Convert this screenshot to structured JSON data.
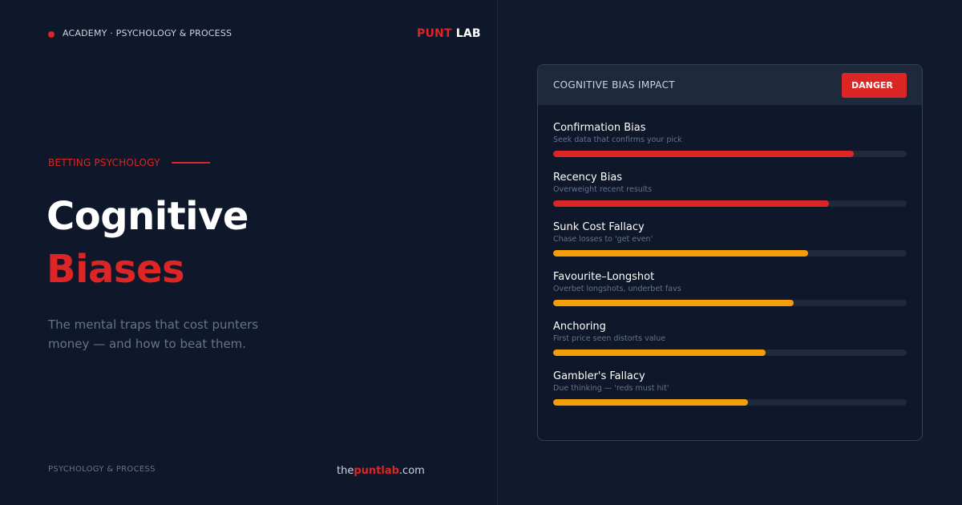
{
  "header": {
    "breadcrumb": "ACADEMY · PSYCHOLOGY & PROCESS",
    "logo_punt": "PUNT",
    "logo_lab": "LAB"
  },
  "hero": {
    "eyebrow": "BETTING PSYCHOLOGY",
    "title_line1": "Cognitive",
    "title_line2": "Biases",
    "subtitle": "The mental traps that cost punters money — and how to beat them."
  },
  "footer": {
    "category": "PSYCHOLOGY & PROCESS",
    "site_pre": "the",
    "site_mid": "puntlab",
    "site_post": ".com"
  },
  "card": {
    "title": "COGNITIVE BIAS IMPACT",
    "badge": "DANGER",
    "biases": [
      {
        "name": "Confirmation Bias",
        "desc": "Seek data that confirms your pick",
        "impact": 0.85,
        "color": "#dc2626"
      },
      {
        "name": "Recency Bias",
        "desc": "Overweight recent results",
        "impact": 0.78,
        "color": "#dc2626"
      },
      {
        "name": "Sunk Cost Fallacy",
        "desc": "Chase losses to 'get even'",
        "impact": 0.72,
        "color": "#f59e0b"
      },
      {
        "name": "Favourite–Longshot",
        "desc": "Overbet longshots, underbet favs",
        "impact": 0.68,
        "color": "#f59e0b"
      },
      {
        "name": "Anchoring",
        "desc": "First price seen distorts value",
        "impact": 0.6,
        "color": "#f59e0b"
      },
      {
        "name": "Gambler's Fallacy",
        "desc": "Due thinking — 'reds must hit'",
        "impact": 0.55,
        "color": "#f59e0b"
      }
    ]
  },
  "colors": {
    "accent": "#dc2626",
    "warning": "#f59e0b",
    "background": "#0f172a"
  }
}
